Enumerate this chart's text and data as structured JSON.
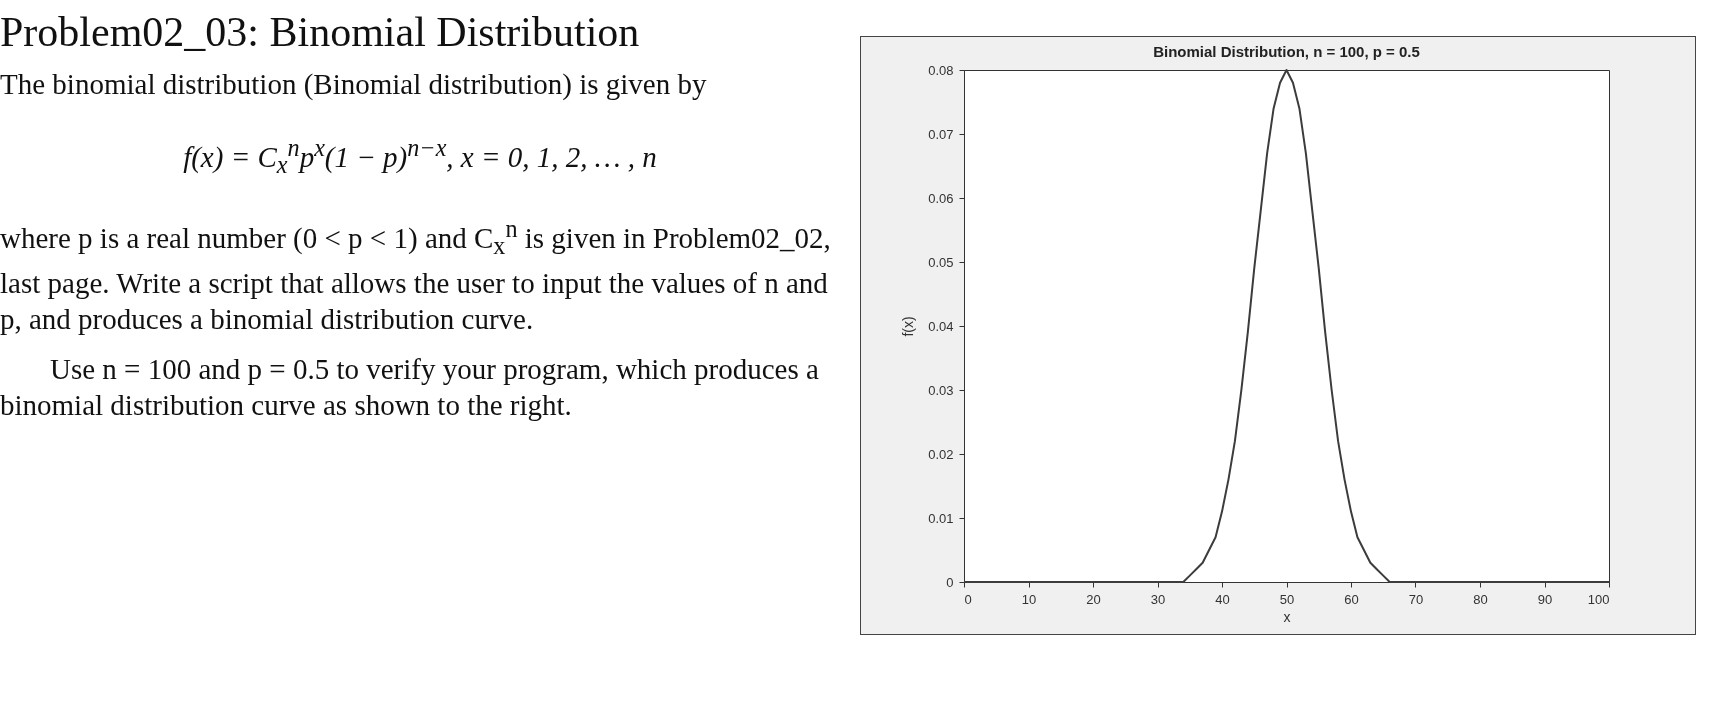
{
  "chart_data": {
    "type": "line",
    "title": "Binomial Distribution, n = 100, p = 0.5",
    "xlabel": "x",
    "ylabel": "f(x)",
    "annotations": [
      "Problem02_03: Binomial Distribution",
      "The binomial distribution (Binomial distribution) is given by",
      "f(x) = C$_{x}$$^{n}$p$^{x}$(1 − p)$^{n−x}$, x = 0, 1, 2, … , n",
      "where p is a real number (0 < p < 1) and C$_{x}$$^{n}$ is given in Problem02_02, last page.  Write a script that allows the user to input the values of n and p, and produces a binomial distribution curve.",
      "Use n = 100 and p = 0.5 to verify your program, which produces a binomial distribution curve as shown to the right."
    ],
    "x": [
      0,
      31,
      32,
      33,
      34,
      35,
      36,
      37,
      38,
      39,
      40,
      41,
      42,
      43,
      44,
      45,
      46,
      47,
      48,
      49,
      50,
      51,
      52,
      53,
      54,
      55,
      56,
      57,
      58,
      59,
      60,
      61,
      62,
      63,
      64,
      65,
      66,
      67,
      68,
      69,
      100
    ],
    "series": [
      {
        "color": "#3c3c3c",
        "values": [
          0,
          0,
          0,
          0,
          0,
          0.001,
          0.002,
          0.003,
          0.005,
          0.007,
          0.011,
          0.016,
          0.022,
          0.03,
          0.039,
          0.049,
          0.058,
          0.067,
          0.074,
          0.078,
          0.08,
          0.078,
          0.074,
          0.067,
          0.058,
          0.049,
          0.039,
          0.03,
          0.022,
          0.016,
          0.011,
          0.007,
          0.005,
          0.003,
          0.002,
          0.001,
          0,
          0,
          0,
          0,
          0
        ]
      }
    ],
    "xlim": [
      0,
      100
    ],
    "xticks": [
      0,
      10,
      20,
      30,
      40,
      50,
      60,
      70,
      80,
      90,
      100
    ],
    "ylim": [
      0,
      0.08
    ],
    "yticks": [
      {
        "value": 0,
        "label": "0"
      },
      0.01,
      0.02,
      0.03,
      0.04,
      0.05,
      0.06,
      0.07,
      0.08
    ],
    "grid": false,
    "marker": "none",
    "line_style": "solid"
  }
}
